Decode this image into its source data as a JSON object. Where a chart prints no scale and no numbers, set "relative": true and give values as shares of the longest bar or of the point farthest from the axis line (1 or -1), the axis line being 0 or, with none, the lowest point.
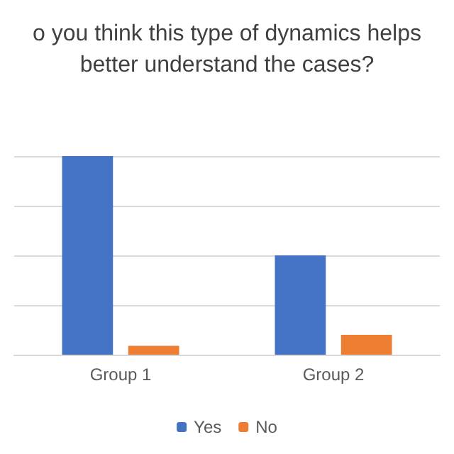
{
  "chart_data": {
    "type": "bar",
    "title": "o you think this type of dynamics helps\nbetter understand the cases?",
    "categories": [
      "Group 1",
      "Group 2"
    ],
    "relative": true,
    "series": [
      {
        "name": "Yes",
        "color": "#4472c4",
        "values": [
          1,
          0.5
        ]
      },
      {
        "name": "No",
        "color": "#ed7d31",
        "values": [
          0.045,
          0.1
        ]
      }
    ],
    "grid": "y",
    "legend": "bottom"
  }
}
